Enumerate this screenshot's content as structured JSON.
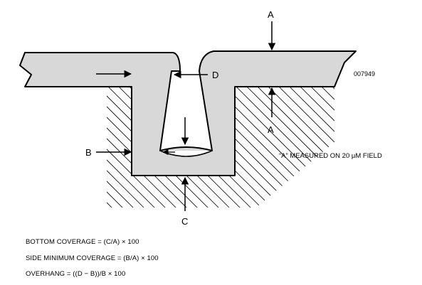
{
  "figure_id": "007949",
  "labels": {
    "a_top": "A",
    "a_bottom": "A",
    "b": "B",
    "c": "C",
    "d": "D"
  },
  "note": "“A” MEASURED ON 20 µM FIELD",
  "formulas": [
    "BOTTOM COVERAGE = (C/A) × 100",
    "SIDE MINIMUM COVERAGE = (B/A) × 100",
    "OVERHANG = ((D − B))/B × 100"
  ],
  "colors": {
    "film_fill": "#d8d8d8",
    "outline": "#000000",
    "background": "#ffffff"
  }
}
